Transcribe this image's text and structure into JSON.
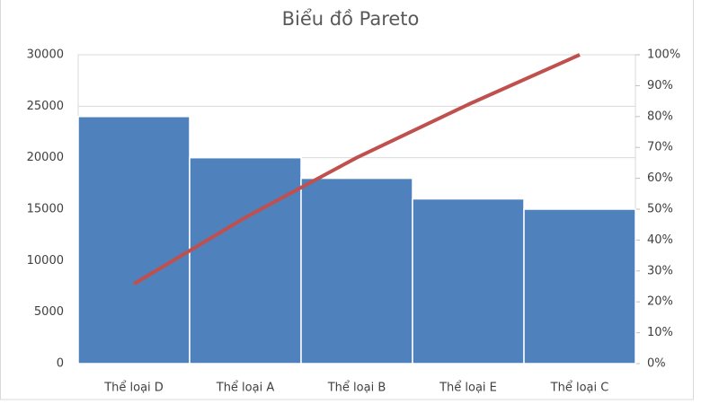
{
  "chart_data": {
    "type": "bar",
    "title": "Biểu đồ Pareto",
    "categories": [
      "Thể loại D",
      "Thể loại A",
      "Thể loại B",
      "Thể loại E",
      "Thể loại C"
    ],
    "series": [
      {
        "type": "bar",
        "color": "#4f81bd",
        "values": [
          24000,
          20000,
          18000,
          16000,
          15000
        ]
      },
      {
        "type": "line",
        "axis": "y2",
        "color": "#c0504d",
        "values": [
          25.8,
          47.3,
          66.7,
          83.9,
          100
        ]
      }
    ],
    "ylim": [
      0,
      30000
    ],
    "yticks": [
      0,
      5000,
      10000,
      15000,
      20000,
      25000,
      30000
    ],
    "y2lim": [
      0,
      100
    ],
    "y2ticks": [
      {
        "value": 0,
        "label": "0%"
      },
      {
        "value": 10,
        "label": "10%"
      },
      {
        "value": 20,
        "label": "20%"
      },
      {
        "value": 30,
        "label": "30%"
      },
      {
        "value": 40,
        "label": "40%"
      },
      {
        "value": 50,
        "label": "50%"
      },
      {
        "value": 60,
        "label": "60%"
      },
      {
        "value": 70,
        "label": "70%"
      },
      {
        "value": 80,
        "label": "80%"
      },
      {
        "value": 90,
        "label": "90%"
      },
      {
        "value": 100,
        "label": "100%"
      }
    ],
    "grid": true
  }
}
